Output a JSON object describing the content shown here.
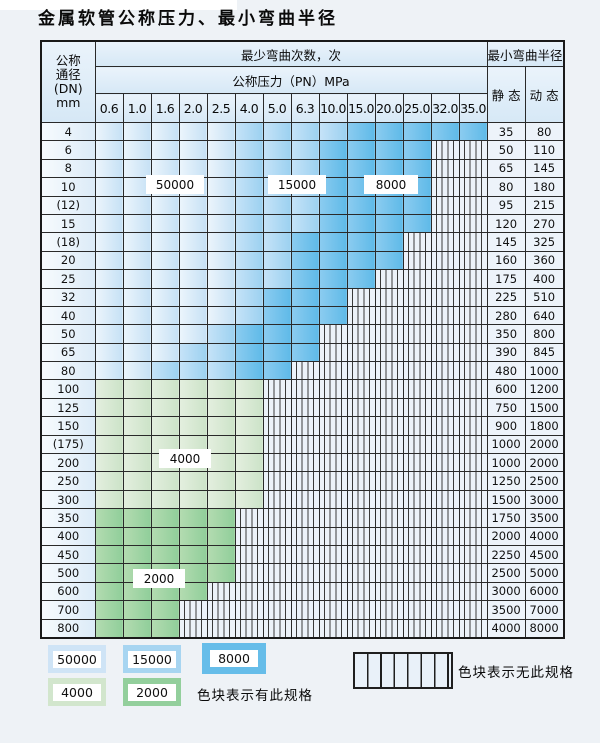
{
  "title": "金属软管公称压力、最小弯曲半径",
  "table": {
    "corner": "公称\n通径\n(DN)\nmm",
    "span1": "最少弯曲次数，次",
    "span2": "公称压力（PN）MPa",
    "radius_header": "最小弯曲半径",
    "static_header": "静 态",
    "dynamic_header": "动 态",
    "pressures": [
      "0.6",
      "1.0",
      "1.6",
      "2.0",
      "2.5",
      "4.0",
      "5.0",
      "6.3",
      "10.0",
      "15.0",
      "20.0",
      "25.0",
      "32.0",
      "35.0"
    ],
    "cell_code_legend": {
      "50k": "50000 bend cycles",
      "15k": "15000 bend cycles",
      "8k": "8000 bend cycles",
      "4k": "4000 bend cycles",
      "2k": "2000 bend cycles",
      "no": "no such specification (hatched)"
    },
    "rows": [
      {
        "dn": "4",
        "cells": [
          "50k",
          "50k",
          "50k",
          "50k",
          "50k",
          "15k",
          "15k",
          "15k",
          "15k",
          "8k",
          "8k",
          "8k",
          "8k",
          "8k"
        ],
        "static": "35",
        "dynamic": "80"
      },
      {
        "dn": "6",
        "cells": [
          "50k",
          "50k",
          "50k",
          "50k",
          "50k",
          "15k",
          "15k",
          "15k",
          "8k",
          "8k",
          "8k",
          "8k",
          "no",
          "no"
        ],
        "static": "50",
        "dynamic": "110"
      },
      {
        "dn": "8",
        "cells": [
          "50k",
          "50k",
          "50k",
          "50k",
          "50k",
          "15k",
          "15k",
          "15k",
          "8k",
          "8k",
          "8k",
          "8k",
          "no",
          "no"
        ],
        "static": "65",
        "dynamic": "145"
      },
      {
        "dn": "10",
        "cells": [
          "50k",
          "50k",
          "50k",
          "50k",
          "50k",
          "15k",
          "15k",
          "15k",
          "8k",
          "8k",
          "8k",
          "8k",
          "no",
          "no"
        ],
        "static": "80",
        "dynamic": "180"
      },
      {
        "dn": "(12)",
        "cells": [
          "50k",
          "50k",
          "50k",
          "50k",
          "50k",
          "15k",
          "15k",
          "15k",
          "8k",
          "8k",
          "8k",
          "8k",
          "no",
          "no"
        ],
        "static": "95",
        "dynamic": "215"
      },
      {
        "dn": "15",
        "cells": [
          "50k",
          "50k",
          "50k",
          "50k",
          "50k",
          "15k",
          "15k",
          "15k",
          "8k",
          "8k",
          "8k",
          "8k",
          "no",
          "no"
        ],
        "static": "120",
        "dynamic": "270"
      },
      {
        "dn": "(18)",
        "cells": [
          "50k",
          "50k",
          "50k",
          "50k",
          "50k",
          "15k",
          "15k",
          "8k",
          "8k",
          "8k",
          "8k",
          "no",
          "no",
          "no"
        ],
        "static": "145",
        "dynamic": "325"
      },
      {
        "dn": "20",
        "cells": [
          "50k",
          "50k",
          "50k",
          "50k",
          "50k",
          "15k",
          "15k",
          "8k",
          "8k",
          "8k",
          "8k",
          "no",
          "no",
          "no"
        ],
        "static": "160",
        "dynamic": "360"
      },
      {
        "dn": "25",
        "cells": [
          "50k",
          "50k",
          "50k",
          "50k",
          "50k",
          "15k",
          "15k",
          "8k",
          "8k",
          "8k",
          "no",
          "no",
          "no",
          "no"
        ],
        "static": "175",
        "dynamic": "400"
      },
      {
        "dn": "32",
        "cells": [
          "50k",
          "50k",
          "50k",
          "50k",
          "50k",
          "15k",
          "8k",
          "8k",
          "8k",
          "no",
          "no",
          "no",
          "no",
          "no"
        ],
        "static": "225",
        "dynamic": "510"
      },
      {
        "dn": "40",
        "cells": [
          "50k",
          "50k",
          "50k",
          "50k",
          "50k",
          "15k",
          "8k",
          "8k",
          "8k",
          "no",
          "no",
          "no",
          "no",
          "no"
        ],
        "static": "280",
        "dynamic": "640"
      },
      {
        "dn": "50",
        "cells": [
          "50k",
          "50k",
          "50k",
          "50k",
          "15k",
          "8k",
          "8k",
          "8k",
          "no",
          "no",
          "no",
          "no",
          "no",
          "no"
        ],
        "static": "350",
        "dynamic": "800"
      },
      {
        "dn": "65",
        "cells": [
          "50k",
          "50k",
          "50k",
          "15k",
          "15k",
          "8k",
          "8k",
          "8k",
          "no",
          "no",
          "no",
          "no",
          "no",
          "no"
        ],
        "static": "390",
        "dynamic": "845"
      },
      {
        "dn": "80",
        "cells": [
          "50k",
          "50k",
          "15k",
          "15k",
          "15k",
          "8k",
          "8k",
          "no",
          "no",
          "no",
          "no",
          "no",
          "no",
          "no"
        ],
        "static": "480",
        "dynamic": "1000"
      },
      {
        "dn": "100",
        "cells": [
          "4k",
          "4k",
          "4k",
          "4k",
          "4k",
          "4k",
          "no",
          "no",
          "no",
          "no",
          "no",
          "no",
          "no",
          "no"
        ],
        "static": "600",
        "dynamic": "1200"
      },
      {
        "dn": "125",
        "cells": [
          "4k",
          "4k",
          "4k",
          "4k",
          "4k",
          "4k",
          "no",
          "no",
          "no",
          "no",
          "no",
          "no",
          "no",
          "no"
        ],
        "static": "750",
        "dynamic": "1500"
      },
      {
        "dn": "150",
        "cells": [
          "4k",
          "4k",
          "4k",
          "4k",
          "4k",
          "4k",
          "no",
          "no",
          "no",
          "no",
          "no",
          "no",
          "no",
          "no"
        ],
        "static": "900",
        "dynamic": "1800"
      },
      {
        "dn": "(175)",
        "cells": [
          "4k",
          "4k",
          "4k",
          "4k",
          "4k",
          "4k",
          "no",
          "no",
          "no",
          "no",
          "no",
          "no",
          "no",
          "no"
        ],
        "static": "1000",
        "dynamic": "2000"
      },
      {
        "dn": "200",
        "cells": [
          "4k",
          "4k",
          "4k",
          "4k",
          "4k",
          "4k",
          "no",
          "no",
          "no",
          "no",
          "no",
          "no",
          "no",
          "no"
        ],
        "static": "1000",
        "dynamic": "2000"
      },
      {
        "dn": "250",
        "cells": [
          "4k",
          "4k",
          "4k",
          "4k",
          "4k",
          "4k",
          "no",
          "no",
          "no",
          "no",
          "no",
          "no",
          "no",
          "no"
        ],
        "static": "1250",
        "dynamic": "2500"
      },
      {
        "dn": "300",
        "cells": [
          "4k",
          "4k",
          "4k",
          "4k",
          "4k",
          "4k",
          "no",
          "no",
          "no",
          "no",
          "no",
          "no",
          "no",
          "no"
        ],
        "static": "1500",
        "dynamic": "3000"
      },
      {
        "dn": "350",
        "cells": [
          "2k",
          "2k",
          "2k",
          "2k",
          "2k",
          "no",
          "no",
          "no",
          "no",
          "no",
          "no",
          "no",
          "no",
          "no"
        ],
        "static": "1750",
        "dynamic": "3500"
      },
      {
        "dn": "400",
        "cells": [
          "2k",
          "2k",
          "2k",
          "2k",
          "2k",
          "no",
          "no",
          "no",
          "no",
          "no",
          "no",
          "no",
          "no",
          "no"
        ],
        "static": "2000",
        "dynamic": "4000"
      },
      {
        "dn": "450",
        "cells": [
          "2k",
          "2k",
          "2k",
          "2k",
          "2k",
          "no",
          "no",
          "no",
          "no",
          "no",
          "no",
          "no",
          "no",
          "no"
        ],
        "static": "2250",
        "dynamic": "4500"
      },
      {
        "dn": "500",
        "cells": [
          "2k",
          "2k",
          "2k",
          "2k",
          "2k",
          "no",
          "no",
          "no",
          "no",
          "no",
          "no",
          "no",
          "no",
          "no"
        ],
        "static": "2500",
        "dynamic": "5000"
      },
      {
        "dn": "600",
        "cells": [
          "2k",
          "2k",
          "2k",
          "2k",
          "no",
          "no",
          "no",
          "no",
          "no",
          "no",
          "no",
          "no",
          "no",
          "no"
        ],
        "static": "3000",
        "dynamic": "6000"
      },
      {
        "dn": "700",
        "cells": [
          "2k",
          "2k",
          "2k",
          "no",
          "no",
          "no",
          "no",
          "no",
          "no",
          "no",
          "no",
          "no",
          "no",
          "no"
        ],
        "static": "3500",
        "dynamic": "7000"
      },
      {
        "dn": "800",
        "cells": [
          "2k",
          "2k",
          "2k",
          "no",
          "no",
          "no",
          "no",
          "no",
          "no",
          "no",
          "no",
          "no",
          "no",
          "no"
        ],
        "static": "4000",
        "dynamic": "8000"
      }
    ]
  },
  "overlays": {
    "l50000": "50000",
    "l15000": "15000",
    "l8000": "8000",
    "l4000": "4000",
    "l2000": "2000"
  },
  "legend": {
    "chips": [
      {
        "code": "50k",
        "label": "50000"
      },
      {
        "code": "15k",
        "label": "15000"
      },
      {
        "code": "8k",
        "label": "8000"
      },
      {
        "code": "4k",
        "label": "4000"
      },
      {
        "code": "2k",
        "label": "2000"
      }
    ],
    "available_text": "色块表示有此规格",
    "unavailable_text": "色块表示无此规格"
  },
  "colors": {
    "band_50000": "#cfe4f6",
    "band_15000": "#a7d5f1",
    "band_8000": "#66bde9",
    "band_4000": "#d2e6cd",
    "band_2000": "#93cf9c",
    "hatch_bg": "#ecf2f9"
  }
}
